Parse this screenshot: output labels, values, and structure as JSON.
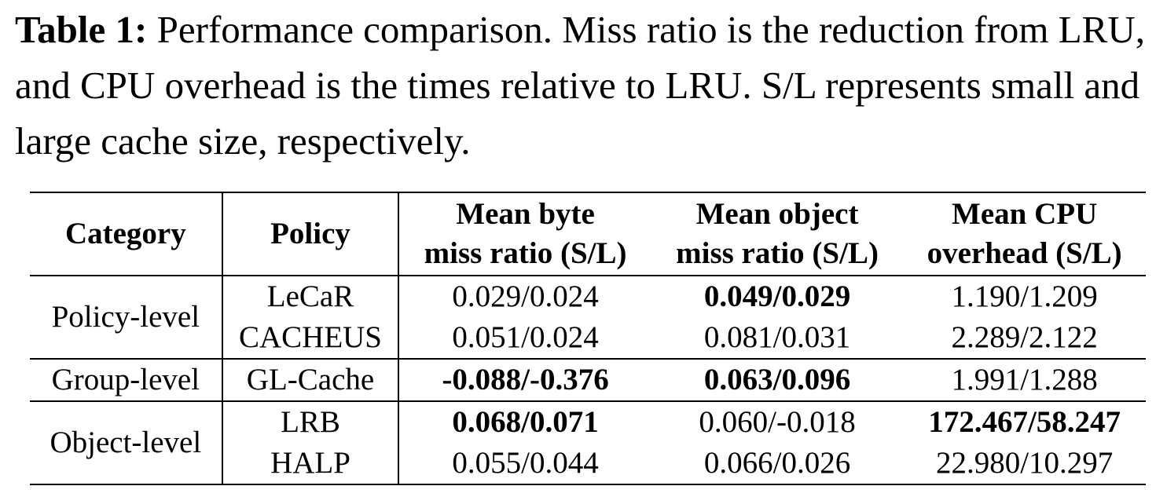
{
  "caption": {
    "label": "Table 1:",
    "text": " Performance comparison. Miss ratio is the reduction from LRU, and CPU overhead is the times relative to LRU. S/L represents small and large cache size, respectively."
  },
  "table": {
    "headers": [
      [
        "Category"
      ],
      [
        "Policy"
      ],
      [
        "Mean byte",
        "miss ratio (S/L)"
      ],
      [
        "Mean object",
        "miss ratio (S/L)"
      ],
      [
        "Mean CPU",
        "overhead (S/L)"
      ]
    ],
    "groups": [
      {
        "category": "Policy-level",
        "rows": [
          {
            "policy": "LeCaR",
            "byte": "0.029/0.024",
            "object": "0.049/0.029",
            "cpu": "1.190/1.209"
          },
          {
            "policy": "CACHEUS",
            "byte": "0.051/0.024",
            "object": "0.081/0.031",
            "cpu": "2.289/2.122"
          }
        ]
      },
      {
        "category": "Group-level",
        "rows": [
          {
            "policy": "GL-Cache",
            "byte": "-0.088/-0.376",
            "object": "0.063/0.096",
            "cpu": "1.991/1.288"
          }
        ]
      },
      {
        "category": "Object-level",
        "rows": [
          {
            "policy": "LRB",
            "byte": "0.068/0.071",
            "object": "0.060/-0.018",
            "cpu": "172.467/58.247"
          },
          {
            "policy": "HALP",
            "byte": "0.055/0.044",
            "object": "0.066/0.026",
            "cpu": "22.980/10.297"
          }
        ]
      }
    ]
  }
}
